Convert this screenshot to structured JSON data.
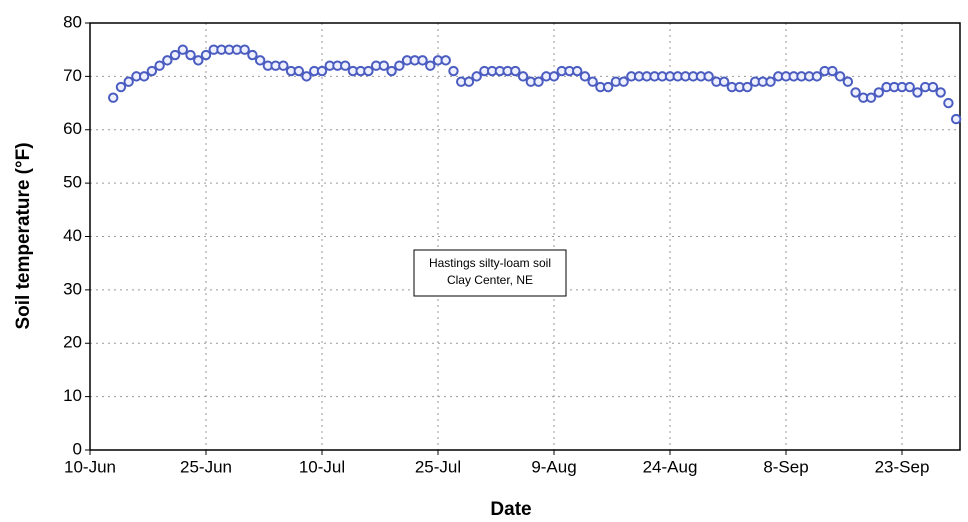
{
  "chart_data": {
    "type": "scatter",
    "y_label": "Soil temperature (°F)",
    "x_label": "Date",
    "annotation": [
      "Hastings silty-loam soil",
      "Clay Center, NE"
    ],
    "categories": [
      "10-Jun",
      null,
      null,
      null,
      null,
      null,
      null,
      null,
      null,
      null,
      null,
      null,
      null,
      null,
      null,
      "25-Jun",
      null,
      null,
      null,
      null,
      null,
      null,
      null,
      null,
      null,
      null,
      null,
      null,
      null,
      null,
      "10-Jul",
      null,
      null,
      null,
      null,
      null,
      null,
      null,
      null,
      null,
      null,
      null,
      null,
      null,
      null,
      "25-Jul",
      null,
      null,
      null,
      null,
      null,
      null,
      null,
      null,
      null,
      null,
      null,
      null,
      null,
      null,
      "9-Aug",
      null,
      null,
      null,
      null,
      null,
      null,
      null,
      null,
      null,
      null,
      null,
      null,
      null,
      null,
      "24-Aug",
      null,
      null,
      null,
      null,
      null,
      null,
      null,
      null,
      null,
      null,
      null,
      null,
      null,
      null,
      "8-Sep",
      null,
      null,
      null,
      null,
      null,
      null,
      null,
      null,
      null,
      null,
      null,
      null,
      null,
      null,
      "23-Sep",
      null,
      null,
      null,
      null,
      null,
      null,
      null
    ],
    "series": [
      {
        "name": "Soil temperature",
        "color": "#4a5cc0",
        "values": [
          null,
          null,
          null,
          66,
          68,
          69,
          70,
          70,
          71,
          72,
          73,
          74,
          75,
          74,
          73,
          74,
          75,
          75,
          75,
          75,
          75,
          74,
          73,
          72,
          72,
          72,
          71,
          71,
          70,
          71,
          71,
          72,
          72,
          72,
          71,
          71,
          71,
          72,
          72,
          71,
          72,
          73,
          73,
          73,
          72,
          73,
          73,
          71,
          69,
          69,
          70,
          71,
          71,
          71,
          71,
          71,
          70,
          69,
          69,
          70,
          70,
          71,
          71,
          71,
          70,
          69,
          68,
          68,
          69,
          69,
          70,
          70,
          70,
          70,
          70,
          70,
          70,
          70,
          70,
          70,
          70,
          69,
          69,
          68,
          68,
          68,
          69,
          69,
          69,
          70,
          70,
          70,
          70,
          70,
          70,
          71,
          71,
          70,
          69,
          67,
          66,
          66,
          67,
          68,
          68,
          68,
          68,
          67,
          68,
          68,
          67,
          65,
          62
        ]
      }
    ],
    "ylim": [
      0,
      80
    ],
    "yticks": [
      0,
      10,
      20,
      30,
      40,
      50,
      60,
      70,
      80
    ],
    "grid": true
  }
}
